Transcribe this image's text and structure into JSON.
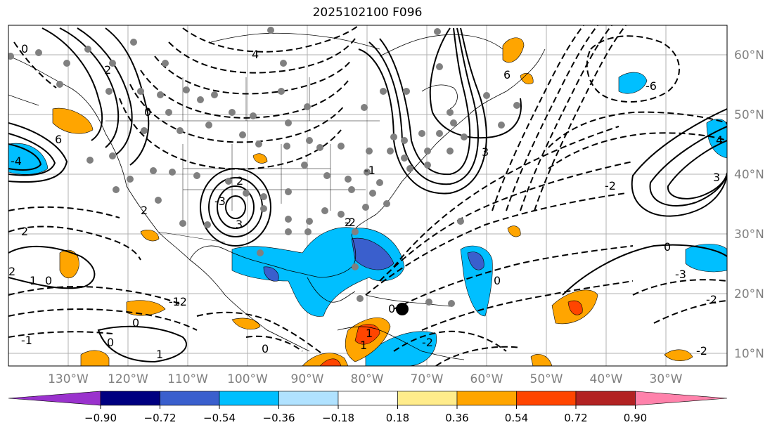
{
  "title": "2025102100 F096",
  "lat_labels": [
    "60°N",
    "50°N",
    "40°N",
    "30°N",
    "20°N",
    "10°N"
  ],
  "lon_labels": [
    "130°W",
    "120°W",
    "110°W",
    "100°W",
    "90°W",
    "80°W",
    "70°W",
    "60°W",
    "50°W",
    "40°W",
    "30°W"
  ],
  "colorbar": {
    "ticks": [
      "−0.90",
      "−0.72",
      "−0.54",
      "−0.36",
      "−0.18",
      "0.18",
      "0.36",
      "0.54",
      "0.72",
      "0.90"
    ],
    "colors": [
      "#9a32cd",
      "#000080",
      "#3a5fcd",
      "#00bfff",
      "#b0e2ff",
      "#ffffff",
      "#ffec8b",
      "#ffa500",
      "#ff4500",
      "#b22222",
      "#ff82ab"
    ]
  },
  "contour_labels": [
    "0",
    "2",
    "4",
    "6",
    "3",
    "2",
    "0",
    "-2",
    "-4",
    "-6",
    "4",
    "6",
    "2",
    "0",
    "3",
    "-2",
    "1",
    "0",
    "-1",
    "2",
    "0",
    "-3",
    "-2",
    "-1",
    "0",
    "1",
    "0",
    "1",
    "-2",
    "-3",
    "2",
    "3",
    "2",
    "0",
    "-2",
    "0",
    "1",
    "-1",
    "-2"
  ],
  "colors": {
    "grid": "#b0b0b0",
    "axis_label": "#808080",
    "contour": "#000000",
    "coast": "#000000"
  }
}
